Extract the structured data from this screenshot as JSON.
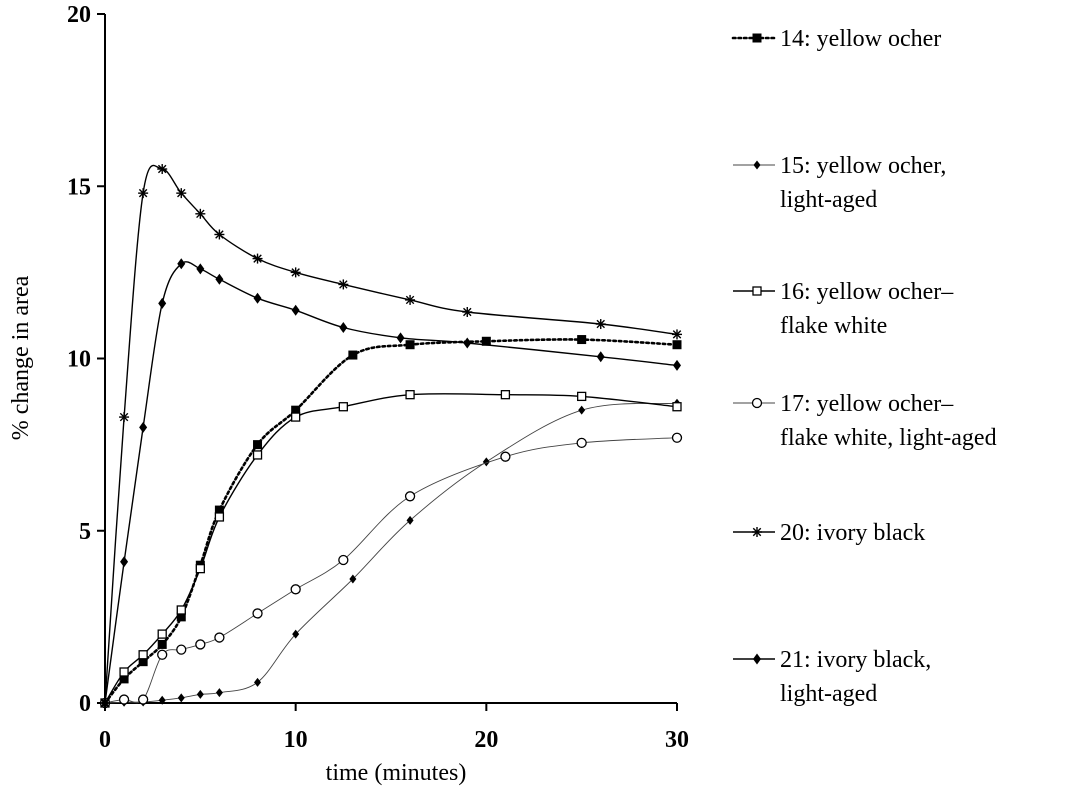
{
  "chart_data": {
    "type": "line",
    "title": "",
    "xlabel": "time (minutes)",
    "ylabel": "% change in area",
    "xlim": [
      0,
      30
    ],
    "ylim": [
      0,
      20
    ],
    "xticks": [
      0,
      10,
      20,
      30
    ],
    "yticks": [
      0,
      5,
      10,
      15,
      20
    ],
    "grid": false,
    "legend_position": "right",
    "series": [
      {
        "name": "14: yellow ocher",
        "name_lines": [
          "14: yellow ocher"
        ],
        "marker": "filled-square",
        "line": "dotted",
        "points": [
          [
            0,
            0
          ],
          [
            1,
            0.7
          ],
          [
            2,
            1.2
          ],
          [
            3,
            1.7
          ],
          [
            4,
            2.5
          ],
          [
            5,
            4.0
          ],
          [
            6,
            5.6
          ],
          [
            8,
            7.5
          ],
          [
            10,
            8.5
          ],
          [
            13,
            10.1
          ],
          [
            16,
            10.4
          ],
          [
            20,
            10.5
          ],
          [
            25,
            10.55
          ],
          [
            30,
            10.4
          ]
        ]
      },
      {
        "name": "15: yellow ocher, light-aged",
        "name_lines": [
          "15: yellow ocher,",
          "light-aged"
        ],
        "marker": "small-filled-diamond",
        "line": "thin",
        "points": [
          [
            0,
            0
          ],
          [
            1,
            0.02
          ],
          [
            2,
            0.03
          ],
          [
            3,
            0.08
          ],
          [
            4,
            0.15
          ],
          [
            5,
            0.25
          ],
          [
            6,
            0.3
          ],
          [
            8,
            0.6
          ],
          [
            10,
            2.0
          ],
          [
            13,
            3.6
          ],
          [
            16,
            5.3
          ],
          [
            20,
            7.0
          ],
          [
            25,
            8.5
          ],
          [
            30,
            8.7
          ]
        ]
      },
      {
        "name": "16: yellow ocher–flake white",
        "name_lines": [
          "16: yellow ocher–",
          "flake white"
        ],
        "marker": "open-square",
        "line": "solid",
        "points": [
          [
            0,
            0
          ],
          [
            1,
            0.9
          ],
          [
            2,
            1.4
          ],
          [
            3,
            2.0
          ],
          [
            4,
            2.7
          ],
          [
            5,
            3.9
          ],
          [
            6,
            5.4
          ],
          [
            8,
            7.2
          ],
          [
            10,
            8.3
          ],
          [
            12.5,
            8.6
          ],
          [
            16,
            8.95
          ],
          [
            21,
            8.95
          ],
          [
            25,
            8.9
          ],
          [
            30,
            8.6
          ]
        ]
      },
      {
        "name": "17: yellow ocher–flake white, light-aged",
        "name_lines": [
          "17: yellow ocher–",
          "flake white, light-aged"
        ],
        "marker": "open-circle",
        "line": "thin",
        "points": [
          [
            0,
            0
          ],
          [
            1,
            0.1
          ],
          [
            2,
            0.1
          ],
          [
            3,
            1.4
          ],
          [
            4,
            1.55
          ],
          [
            5,
            1.7
          ],
          [
            6,
            1.9
          ],
          [
            8,
            2.6
          ],
          [
            10,
            3.3
          ],
          [
            12.5,
            4.15
          ],
          [
            16,
            6.0
          ],
          [
            21,
            7.15
          ],
          [
            25,
            7.55
          ],
          [
            30,
            7.7
          ]
        ]
      },
      {
        "name": "20: ivory black",
        "name_lines": [
          "20: ivory black"
        ],
        "marker": "asterisk",
        "line": "solid",
        "points": [
          [
            0,
            0
          ],
          [
            1,
            8.3
          ],
          [
            2,
            14.8
          ],
          [
            3,
            15.5
          ],
          [
            4,
            14.8
          ],
          [
            5,
            14.2
          ],
          [
            6,
            13.6
          ],
          [
            8,
            12.9
          ],
          [
            10,
            12.5
          ],
          [
            12.5,
            12.15
          ],
          [
            16,
            11.7
          ],
          [
            19,
            11.35
          ],
          [
            26,
            11.0
          ],
          [
            30,
            10.7
          ]
        ]
      },
      {
        "name": "21: ivory black, light-aged",
        "name_lines": [
          "21: ivory black,",
          "light-aged"
        ],
        "marker": "filled-diamond",
        "line": "solid",
        "points": [
          [
            0,
            0
          ],
          [
            1,
            4.1
          ],
          [
            2,
            8.0
          ],
          [
            3,
            11.6
          ],
          [
            4,
            12.75
          ],
          [
            5,
            12.6
          ],
          [
            6,
            12.3
          ],
          [
            8,
            11.75
          ],
          [
            10,
            11.4
          ],
          [
            12.5,
            10.9
          ],
          [
            15.5,
            10.6
          ],
          [
            19,
            10.45
          ],
          [
            26,
            10.05
          ],
          [
            30,
            9.8
          ]
        ]
      }
    ]
  }
}
